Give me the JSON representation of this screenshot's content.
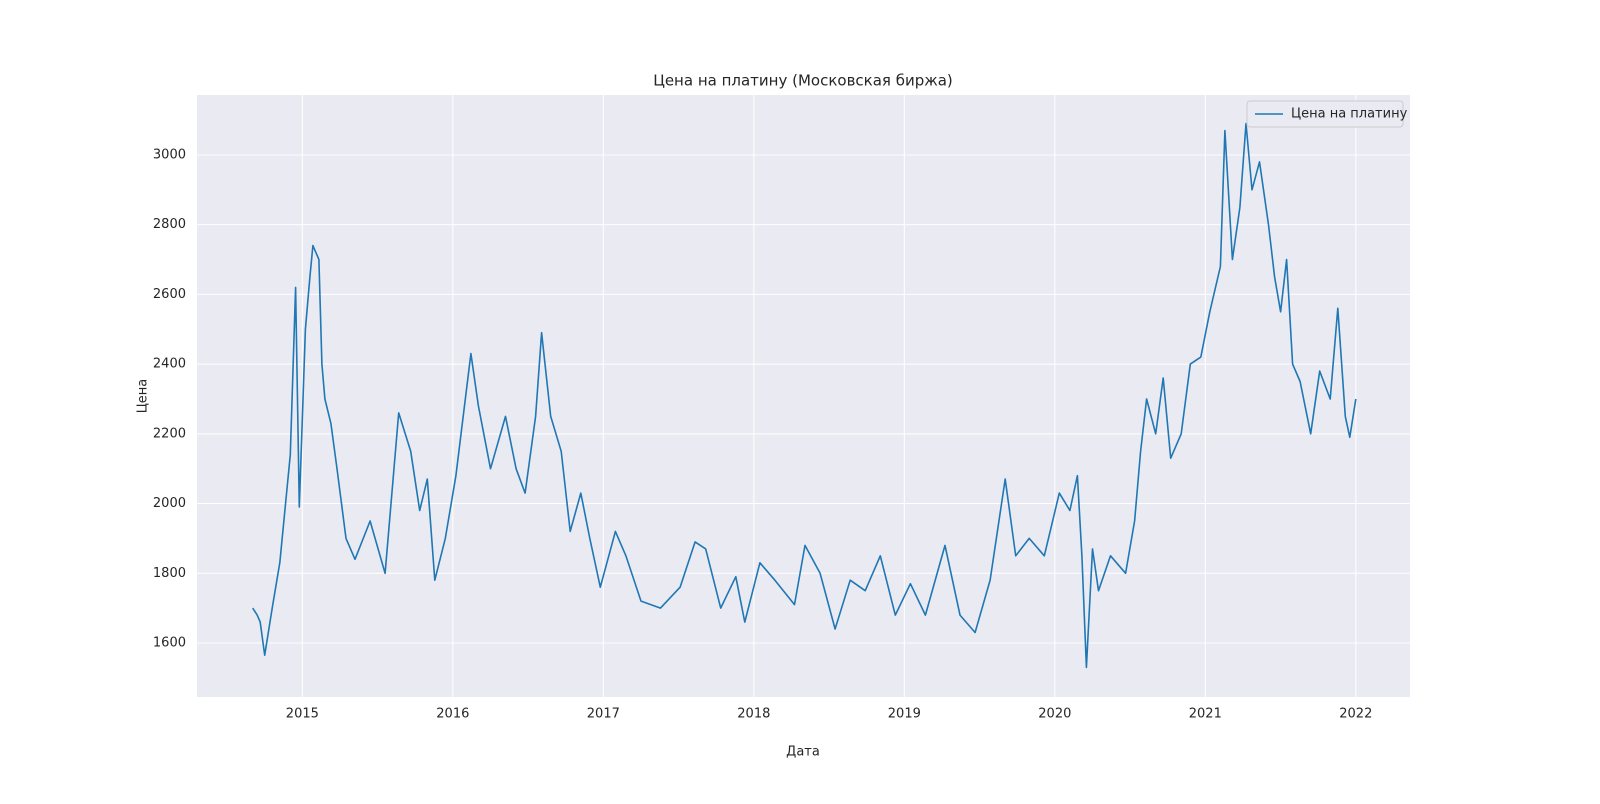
{
  "chart_data": {
    "type": "line",
    "title": "Цена на платину (Московская биржа)",
    "x_label": "Дата",
    "y_label": "Цена",
    "x": [
      2014.67,
      2014.7,
      2014.72,
      2014.75,
      2014.8,
      2014.85,
      2014.92,
      2014.955,
      2014.98,
      2015.02,
      2015.05,
      2015.07,
      2015.11,
      2015.13,
      2015.15,
      2015.19,
      2015.23,
      2015.29,
      2015.35,
      2015.45,
      2015.55,
      2015.64,
      2015.72,
      2015.78,
      2015.83,
      2015.88,
      2015.95,
      2016.02,
      2016.12,
      2016.17,
      2016.25,
      2016.35,
      2016.42,
      2016.48,
      2016.55,
      2016.59,
      2016.65,
      2016.72,
      2016.78,
      2016.85,
      2016.91,
      2016.98,
      2017.08,
      2017.15,
      2017.25,
      2017.38,
      2017.51,
      2017.61,
      2017.68,
      2017.78,
      2017.88,
      2017.94,
      2018.04,
      2018.14,
      2018.27,
      2018.34,
      2018.44,
      2018.54,
      2018.64,
      2018.74,
      2018.84,
      2018.94,
      2019.04,
      2019.14,
      2019.27,
      2019.37,
      2019.47,
      2019.57,
      2019.67,
      2019.74,
      2019.83,
      2019.93,
      2020.03,
      2020.1,
      2020.15,
      2020.18,
      2020.21,
      2020.25,
      2020.29,
      2020.37,
      2020.47,
      2020.53,
      2020.57,
      2020.61,
      2020.67,
      2020.72,
      2020.77,
      2020.84,
      2020.9,
      2020.97,
      2021.03,
      2021.1,
      2021.13,
      2021.18,
      2021.23,
      2021.27,
      2021.31,
      2021.36,
      2021.42,
      2021.46,
      2021.5,
      2021.54,
      2021.58,
      2021.63,
      2021.7,
      2021.76,
      2021.83,
      2021.88,
      2021.93,
      2021.96,
      2022.0
    ],
    "series": [
      {
        "name": "Цена на платину",
        "color": "#1f77b4",
        "values": [
          1700,
          1680,
          1660,
          1565,
          1700,
          1830,
          2140,
          2620,
          1990,
          2500,
          2650,
          2740,
          2700,
          2400,
          2300,
          2230,
          2100,
          1900,
          1840,
          1950,
          1800,
          2260,
          2150,
          1980,
          2070,
          1780,
          1900,
          2080,
          2430,
          2280,
          2100,
          2250,
          2100,
          2030,
          2250,
          2490,
          2250,
          2150,
          1920,
          2030,
          1900,
          1760,
          1920,
          1850,
          1720,
          1700,
          1760,
          1890,
          1870,
          1700,
          1790,
          1660,
          1830,
          1780,
          1710,
          1880,
          1800,
          1640,
          1780,
          1750,
          1850,
          1680,
          1770,
          1680,
          1880,
          1680,
          1630,
          1780,
          2070,
          1850,
          1900,
          1850,
          2030,
          1980,
          2080,
          1850,
          1530,
          1870,
          1750,
          1850,
          1800,
          1950,
          2150,
          2300,
          2200,
          2360,
          2130,
          2200,
          2400,
          2420,
          2550,
          2680,
          3070,
          2700,
          2850,
          3090,
          2900,
          2980,
          2800,
          2650,
          2550,
          2700,
          2400,
          2350,
          2200,
          2380,
          2300,
          2560,
          2250,
          2190,
          2300
        ]
      }
    ],
    "xlim": [
      2014.3,
      2022.36
    ],
    "xticks": [
      2015,
      2016,
      2017,
      2018,
      2019,
      2020,
      2021,
      2022
    ],
    "ylim": [
      1445,
      3172
    ],
    "yticks": [
      1600,
      1800,
      2000,
      2200,
      2400,
      2600,
      2800,
      3000
    ],
    "grid": true,
    "legend": "upper right"
  }
}
